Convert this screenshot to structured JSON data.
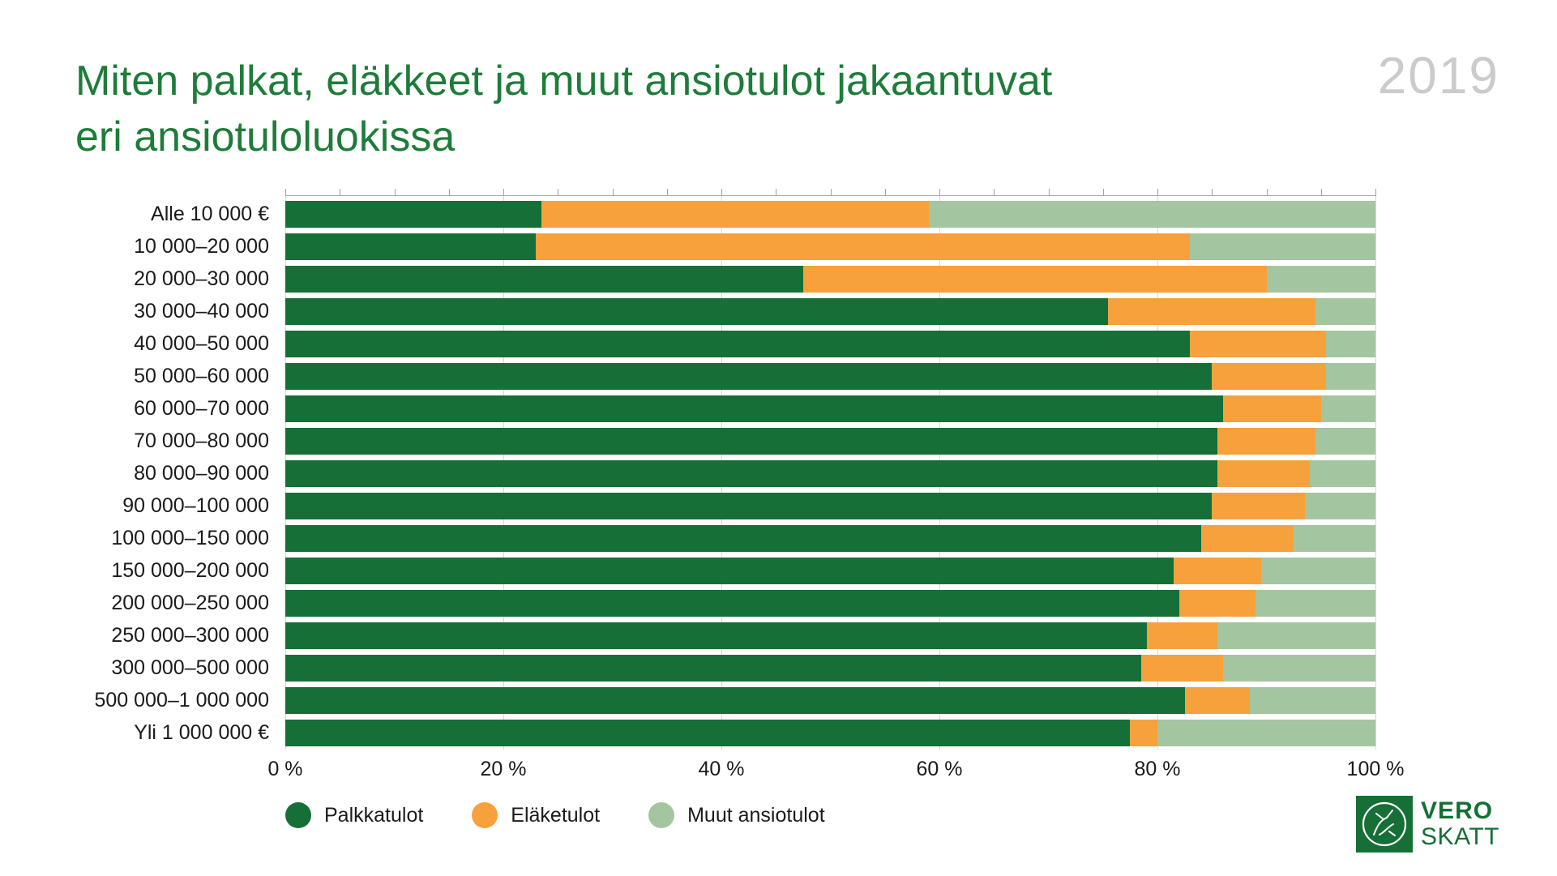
{
  "header": {
    "title_line1": "Miten palkat, eläkkeet ja muut ansiotulot jakaantuvat",
    "title_line2": "eri ansiotuloluokissa",
    "year": "2019"
  },
  "colors": {
    "title-green": "#1e7c3a",
    "bar-green": "#166f36",
    "orange": "#f6a13c",
    "light-green": "#a3c6a0",
    "year-gray": "#cbcbcb",
    "logo-green": "#166f36"
  },
  "chart_data": {
    "type": "bar",
    "orientation": "horizontal",
    "stacked": true,
    "unit": "%",
    "title": "Miten palkat, eläkkeet ja muut ansiotulot jakaantuvat eri ansiotuloluokissa",
    "categories": [
      "Alle 10 000 €",
      "10 000–20 000",
      "20 000–30 000",
      "30 000–40 000",
      "40 000–50 000",
      "50 000–60 000",
      "60 000–70 000",
      "70 000–80 000",
      "80 000–90 000",
      "90 000–100 000",
      "100 000–150 000",
      "150 000–200 000",
      "200 000–250 000",
      "250 000–300 000",
      "300 000–500 000",
      "500 000–1 000 000",
      "Yli 1 000 000 €"
    ],
    "series": [
      {
        "name": "Palkkatulot",
        "key": "palkkatulot",
        "color": "#166f36",
        "values": [
          23.5,
          23,
          47.5,
          75.5,
          83,
          85,
          86,
          85.5,
          85.5,
          85,
          84,
          81.5,
          82,
          79,
          78.5,
          82.5,
          77.5
        ]
      },
      {
        "name": "Eläketulot",
        "key": "elaketulot",
        "color": "#f6a13c",
        "values": [
          35.5,
          60,
          42.5,
          19,
          12.5,
          10.5,
          9,
          9,
          8.5,
          8.5,
          8.5,
          8,
          7,
          6.5,
          7.5,
          6,
          2.5
        ]
      },
      {
        "name": "Muut ansiotulot",
        "key": "muut-ansiotulot",
        "color": "#a3c6a0",
        "values": [
          41,
          17,
          10,
          5.5,
          4.5,
          4.5,
          5,
          5.5,
          6,
          6.5,
          7.5,
          10.5,
          11,
          14.5,
          14,
          11.5,
          20
        ]
      }
    ],
    "x_axis": {
      "min": 0,
      "max": 100,
      "tick_labels": [
        "0 %",
        "20 %",
        "40 %",
        "60 %",
        "80 %",
        "100 %"
      ],
      "tick_positions": [
        0,
        20,
        40,
        60,
        80,
        100
      ],
      "gridline_step": 20,
      "minor_tick_step": 5,
      "gridlines": true
    },
    "legend_position": "bottom",
    "legend": [
      "Palkkatulot",
      "Eläketulot",
      "Muut ansiotulot"
    ]
  },
  "logo": {
    "line1": "VERO",
    "line2": "SKATT"
  }
}
